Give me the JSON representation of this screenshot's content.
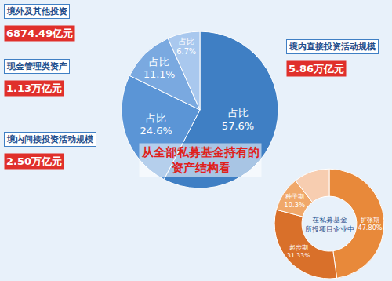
{
  "chart_data": [
    {
      "type": "pie",
      "title": "从全部私募基金持有的资产结构看",
      "categories": [
        "境内直接投资活动规模",
        "境内间接投资活动规模",
        "现金管理类资产",
        "境外及其他投资"
      ],
      "values": [
        57.6,
        24.6,
        11.1,
        6.7
      ],
      "value_labels": [
        "占比 57.6%",
        "占比 24.6%",
        "占比 11.1%",
        "占比 6.7%"
      ],
      "amount_labels": [
        "5.86万亿元",
        "2.50万亿元",
        "1.13万亿元",
        "6874.49亿元"
      ],
      "colors": [
        "#3f7fc4",
        "#5b95d6",
        "#7aa9e0",
        "#a9c8ee"
      ],
      "data_labels": true
    },
    {
      "type": "pie",
      "title": "在私募基金所投项目企业中",
      "categories": [
        "扩张期",
        "起步期",
        "种子期",
        null
      ],
      "values": [
        47.8,
        31.33,
        10.3,
        10.57
      ],
      "value_labels": [
        "47.80%",
        "31.33%",
        "10.3%",
        null
      ],
      "colors": [
        "#e8893a",
        "#d9702a",
        "#f0a86a",
        "#f7cdb0"
      ],
      "data_labels": true
    }
  ]
}
